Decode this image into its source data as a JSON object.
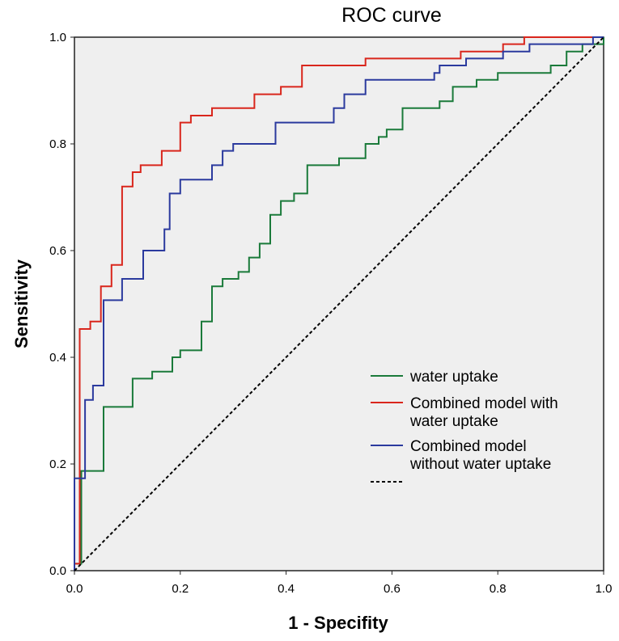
{
  "chart_data": {
    "type": "line",
    "title": "ROC curve",
    "xlabel": "1 - Specifity",
    "ylabel": "Sensitivity",
    "xlim": [
      0,
      1
    ],
    "ylim": [
      0,
      1
    ],
    "xticks": [
      "0.0",
      "0.2",
      "0.4",
      "0.6",
      "0.8",
      "1.0"
    ],
    "yticks": [
      "0.0",
      "0.2",
      "0.4",
      "0.6",
      "0.8",
      "1.0"
    ],
    "legend": "right",
    "series": [
      {
        "name": "water uptake",
        "color": "#1a7a3a",
        "style": "step",
        "points": [
          [
            0,
            0
          ],
          [
            0,
            0.013
          ],
          [
            0.013,
            0.013
          ],
          [
            0.013,
            0.187
          ],
          [
            0.055,
            0.187
          ],
          [
            0.055,
            0.307
          ],
          [
            0.11,
            0.307
          ],
          [
            0.11,
            0.36
          ],
          [
            0.147,
            0.36
          ],
          [
            0.147,
            0.373
          ],
          [
            0.185,
            0.373
          ],
          [
            0.185,
            0.4
          ],
          [
            0.2,
            0.4
          ],
          [
            0.2,
            0.413
          ],
          [
            0.24,
            0.413
          ],
          [
            0.24,
            0.467
          ],
          [
            0.26,
            0.467
          ],
          [
            0.26,
            0.533
          ],
          [
            0.28,
            0.533
          ],
          [
            0.28,
            0.547
          ],
          [
            0.31,
            0.547
          ],
          [
            0.31,
            0.56
          ],
          [
            0.33,
            0.56
          ],
          [
            0.33,
            0.587
          ],
          [
            0.35,
            0.587
          ],
          [
            0.35,
            0.613
          ],
          [
            0.37,
            0.613
          ],
          [
            0.37,
            0.667
          ],
          [
            0.39,
            0.667
          ],
          [
            0.39,
            0.693
          ],
          [
            0.415,
            0.693
          ],
          [
            0.415,
            0.707
          ],
          [
            0.44,
            0.707
          ],
          [
            0.44,
            0.76
          ],
          [
            0.5,
            0.76
          ],
          [
            0.5,
            0.773
          ],
          [
            0.55,
            0.773
          ],
          [
            0.55,
            0.8
          ],
          [
            0.575,
            0.8
          ],
          [
            0.575,
            0.813
          ],
          [
            0.59,
            0.813
          ],
          [
            0.59,
            0.827
          ],
          [
            0.62,
            0.827
          ],
          [
            0.62,
            0.867
          ],
          [
            0.69,
            0.867
          ],
          [
            0.69,
            0.88
          ],
          [
            0.715,
            0.88
          ],
          [
            0.715,
            0.907
          ],
          [
            0.76,
            0.907
          ],
          [
            0.76,
            0.92
          ],
          [
            0.8,
            0.92
          ],
          [
            0.8,
            0.933
          ],
          [
            0.9,
            0.933
          ],
          [
            0.9,
            0.947
          ],
          [
            0.93,
            0.947
          ],
          [
            0.93,
            0.973
          ],
          [
            0.96,
            0.973
          ],
          [
            0.96,
            0.987
          ],
          [
            1,
            0.987
          ],
          [
            1,
            1
          ]
        ]
      },
      {
        "name": "Combined model with water uptake",
        "color": "#d9261c",
        "style": "step",
        "points": [
          [
            0,
            0
          ],
          [
            0,
            0.013
          ],
          [
            0.01,
            0.013
          ],
          [
            0.01,
            0.453
          ],
          [
            0.03,
            0.453
          ],
          [
            0.03,
            0.467
          ],
          [
            0.05,
            0.467
          ],
          [
            0.05,
            0.533
          ],
          [
            0.07,
            0.533
          ],
          [
            0.07,
            0.573
          ],
          [
            0.09,
            0.573
          ],
          [
            0.09,
            0.72
          ],
          [
            0.11,
            0.72
          ],
          [
            0.11,
            0.747
          ],
          [
            0.125,
            0.747
          ],
          [
            0.125,
            0.76
          ],
          [
            0.165,
            0.76
          ],
          [
            0.165,
            0.787
          ],
          [
            0.2,
            0.787
          ],
          [
            0.2,
            0.84
          ],
          [
            0.22,
            0.84
          ],
          [
            0.22,
            0.853
          ],
          [
            0.26,
            0.853
          ],
          [
            0.26,
            0.867
          ],
          [
            0.34,
            0.867
          ],
          [
            0.34,
            0.893
          ],
          [
            0.39,
            0.893
          ],
          [
            0.39,
            0.907
          ],
          [
            0.43,
            0.907
          ],
          [
            0.43,
            0.947
          ],
          [
            0.55,
            0.947
          ],
          [
            0.55,
            0.96
          ],
          [
            0.73,
            0.96
          ],
          [
            0.73,
            0.973
          ],
          [
            0.81,
            0.973
          ],
          [
            0.81,
            0.987
          ],
          [
            0.85,
            0.987
          ],
          [
            0.85,
            1
          ],
          [
            1,
            1
          ]
        ]
      },
      {
        "name": "Combined model without water uptake",
        "color": "#2b3a9e",
        "style": "step",
        "points": [
          [
            0,
            0
          ],
          [
            0,
            0.173
          ],
          [
            0.02,
            0.173
          ],
          [
            0.02,
            0.32
          ],
          [
            0.035,
            0.32
          ],
          [
            0.035,
            0.347
          ],
          [
            0.055,
            0.347
          ],
          [
            0.055,
            0.507
          ],
          [
            0.09,
            0.507
          ],
          [
            0.09,
            0.547
          ],
          [
            0.13,
            0.547
          ],
          [
            0.13,
            0.6
          ],
          [
            0.17,
            0.6
          ],
          [
            0.17,
            0.64
          ],
          [
            0.18,
            0.64
          ],
          [
            0.18,
            0.707
          ],
          [
            0.2,
            0.707
          ],
          [
            0.2,
            0.733
          ],
          [
            0.26,
            0.733
          ],
          [
            0.26,
            0.76
          ],
          [
            0.28,
            0.76
          ],
          [
            0.28,
            0.787
          ],
          [
            0.3,
            0.787
          ],
          [
            0.3,
            0.8
          ],
          [
            0.38,
            0.8
          ],
          [
            0.38,
            0.84
          ],
          [
            0.49,
            0.84
          ],
          [
            0.49,
            0.867
          ],
          [
            0.51,
            0.867
          ],
          [
            0.51,
            0.893
          ],
          [
            0.55,
            0.893
          ],
          [
            0.55,
            0.92
          ],
          [
            0.68,
            0.92
          ],
          [
            0.68,
            0.933
          ],
          [
            0.69,
            0.933
          ],
          [
            0.69,
            0.947
          ],
          [
            0.74,
            0.947
          ],
          [
            0.74,
            0.96
          ],
          [
            0.81,
            0.96
          ],
          [
            0.81,
            0.973
          ],
          [
            0.86,
            0.973
          ],
          [
            0.86,
            0.987
          ],
          [
            0.98,
            0.987
          ],
          [
            0.98,
            1
          ],
          [
            1,
            1
          ]
        ]
      },
      {
        "name": "",
        "color": "#000000",
        "style": "dashed",
        "points": [
          [
            0,
            0
          ],
          [
            1,
            1
          ]
        ]
      }
    ]
  },
  "legend": {
    "lines": [
      [
        "water uptake"
      ],
      [
        "Combined model with",
        "water uptake"
      ],
      [
        "Combined model",
        "without water uptake"
      ],
      [
        ""
      ]
    ]
  }
}
